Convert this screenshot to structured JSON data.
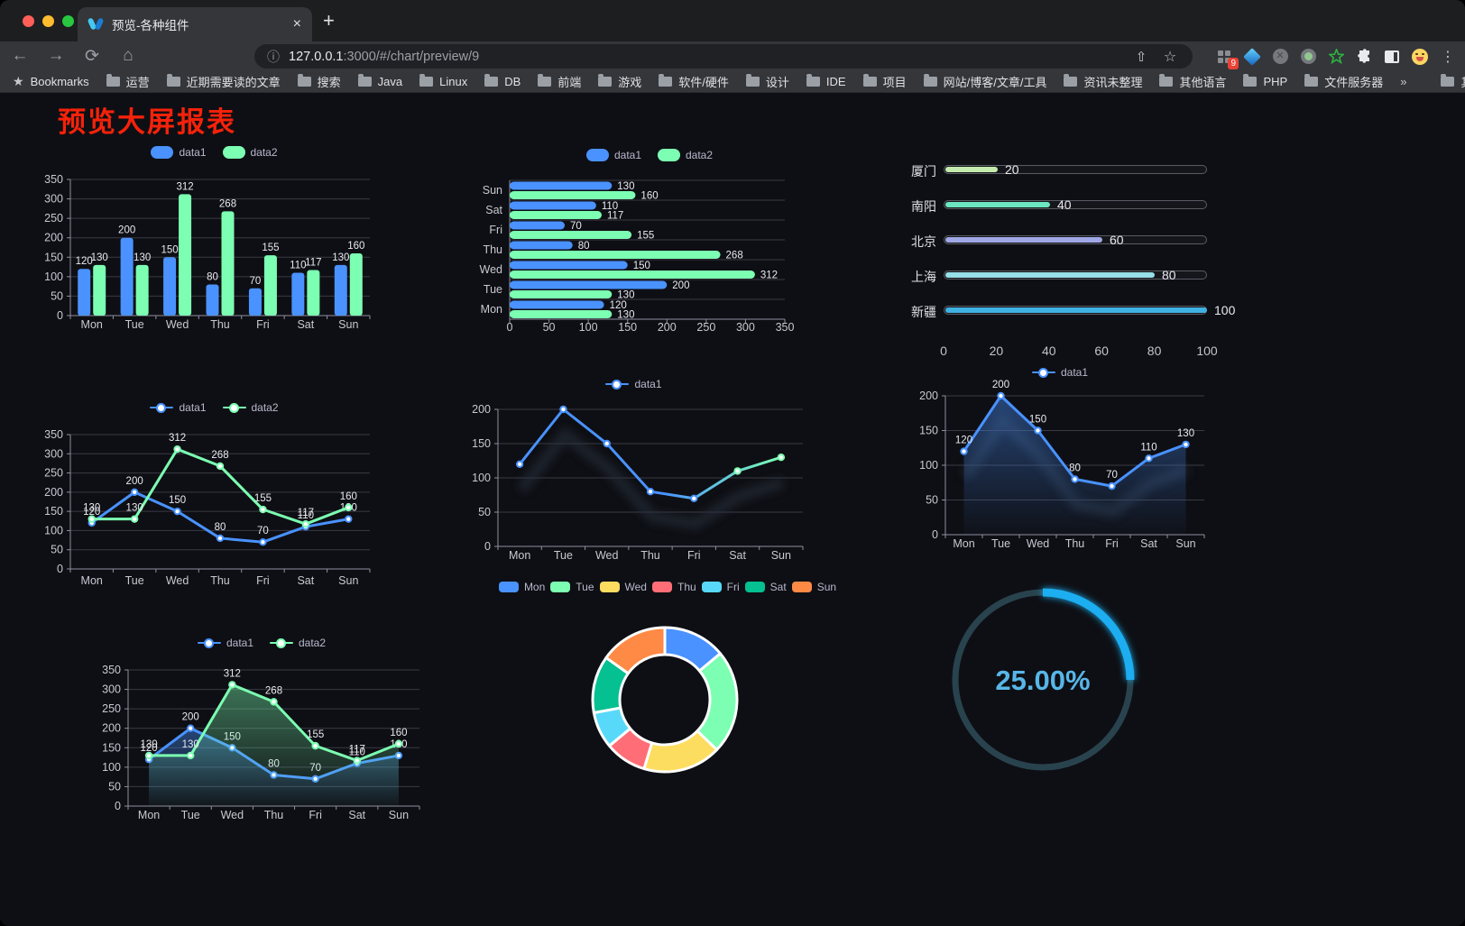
{
  "browser": {
    "traffic_lights": [
      "#ff5f57",
      "#febc2e",
      "#28c840"
    ],
    "tab": {
      "title": "预览-各种组件",
      "close": "×",
      "new_tab": "+"
    },
    "nav": {
      "back": "←",
      "forward": "→",
      "reload": "⟳",
      "home": "⌂",
      "info": "ⓘ"
    },
    "url": {
      "host": "127.0.0.1",
      "rest": ":3000/#/chart/preview/9"
    },
    "url_share": "⇧",
    "url_star": "☆",
    "menu_dots": "⋮",
    "extensions_badge": "9",
    "bookmarks": {
      "star_label": "Bookmarks",
      "items": [
        "运营",
        "近期需要读的文章",
        "搜索",
        "Java",
        "Linux",
        "DB",
        "前端",
        "游戏",
        "软件/硬件",
        "设计",
        "IDE",
        "项目",
        "网站/博客/文章/工具",
        "资讯未整理",
        "其他语言",
        "PHP",
        "文件服务器"
      ],
      "overflow": "»",
      "other": "其他书签"
    }
  },
  "page": {
    "title": "预览大屏报表",
    "title_color": "#f5220a",
    "background": "#0e0f14"
  },
  "chart_data": [
    {
      "id": "bar-vertical",
      "type": "bar",
      "categories": [
        "Mon",
        "Tue",
        "Wed",
        "Thu",
        "Fri",
        "Sat",
        "Sun"
      ],
      "series": [
        {
          "name": "data1",
          "color": "#4992ff",
          "values": [
            120,
            200,
            150,
            80,
            70,
            110,
            130
          ]
        },
        {
          "name": "data2",
          "color": "#7cffb2",
          "values": [
            130,
            130,
            312,
            268,
            155,
            117,
            160
          ]
        }
      ],
      "ylim": [
        0,
        350
      ],
      "yticks": [
        0,
        50,
        100,
        150,
        200,
        250,
        300,
        350
      ],
      "legend_position": "top",
      "show_labels": true,
      "grid": true
    },
    {
      "id": "bar-horizontal",
      "type": "hbar",
      "categories": [
        "Mon",
        "Tue",
        "Wed",
        "Thu",
        "Fri",
        "Sat",
        "Sun"
      ],
      "display_order": "Sun-top",
      "series": [
        {
          "name": "data1",
          "color": "#4992ff",
          "values": [
            120,
            200,
            150,
            80,
            70,
            110,
            130
          ]
        },
        {
          "name": "data2",
          "color": "#7cffb2",
          "values": [
            130,
            130,
            312,
            268,
            155,
            117,
            160
          ]
        }
      ],
      "xlim": [
        0,
        350
      ],
      "xticks": [
        0,
        50,
        100,
        150,
        200,
        250,
        300,
        350
      ],
      "legend_position": "top",
      "show_labels": true,
      "grid": true
    },
    {
      "id": "progress",
      "type": "progress_bars",
      "max": 100,
      "items": [
        {
          "label": "厦门",
          "value": 20,
          "color": "#c4ebad"
        },
        {
          "label": "南阳",
          "value": 40,
          "color": "#6be6c1"
        },
        {
          "label": "北京",
          "value": 60,
          "color": "#a0a7e6"
        },
        {
          "label": "上海",
          "value": 80,
          "color": "#96dee8"
        },
        {
          "label": "新疆",
          "value": 100,
          "color": "#3fb1e3"
        }
      ],
      "xticks": [
        0,
        20,
        40,
        60,
        80,
        100
      ]
    },
    {
      "id": "line-dual",
      "type": "line",
      "categories": [
        "Mon",
        "Tue",
        "Wed",
        "Thu",
        "Fri",
        "Sat",
        "Sun"
      ],
      "series": [
        {
          "name": "data1",
          "color": "#4992ff",
          "values": [
            120,
            200,
            150,
            80,
            70,
            110,
            130
          ]
        },
        {
          "name": "data2",
          "color": "#7cffb2",
          "values": [
            130,
            130,
            312,
            268,
            155,
            117,
            160
          ]
        }
      ],
      "ylim": [
        0,
        350
      ],
      "yticks": [
        0,
        50,
        100,
        150,
        200,
        250,
        300,
        350
      ],
      "legend_position": "top",
      "show_labels": true,
      "markers": true,
      "grid": true
    },
    {
      "id": "line-gradient",
      "type": "line",
      "categories": [
        "Mon",
        "Tue",
        "Wed",
        "Thu",
        "Fri",
        "Sat",
        "Sun"
      ],
      "series": [
        {
          "name": "data1",
          "color": "#4992ff",
          "gradient": [
            "#4992ff",
            "#7cffb2"
          ],
          "values": [
            120,
            200,
            150,
            80,
            70,
            110,
            130
          ]
        }
      ],
      "ylim": [
        0,
        200
      ],
      "yticks": [
        0,
        50,
        100,
        150,
        200
      ],
      "legend_position": "top",
      "show_labels": false,
      "markers": true,
      "shadow": true,
      "grid": true
    },
    {
      "id": "area-single",
      "type": "line",
      "categories": [
        "Mon",
        "Tue",
        "Wed",
        "Thu",
        "Fri",
        "Sat",
        "Sun"
      ],
      "series": [
        {
          "name": "data1",
          "color": "#4992ff",
          "area": true,
          "values": [
            120,
            200,
            150,
            80,
            70,
            110,
            130
          ]
        }
      ],
      "ylim": [
        0,
        200
      ],
      "yticks": [
        0,
        50,
        100,
        150,
        200
      ],
      "legend_position": "top",
      "show_labels": true,
      "markers": true,
      "shadow": true,
      "grid": true
    },
    {
      "id": "area-dual",
      "type": "line",
      "categories": [
        "Mon",
        "Tue",
        "Wed",
        "Thu",
        "Fri",
        "Sat",
        "Sun"
      ],
      "series": [
        {
          "name": "data1",
          "color": "#4992ff",
          "area": true,
          "values": [
            120,
            200,
            150,
            80,
            70,
            110,
            130
          ]
        },
        {
          "name": "data2",
          "color": "#7cffb2",
          "area": true,
          "values": [
            130,
            130,
            312,
            268,
            155,
            117,
            160
          ]
        }
      ],
      "ylim": [
        0,
        350
      ],
      "yticks": [
        0,
        50,
        100,
        150,
        200,
        250,
        300,
        350
      ],
      "legend_position": "top",
      "show_labels": true,
      "markers": true,
      "grid": true
    },
    {
      "id": "donut",
      "type": "pie",
      "labels": [
        "Mon",
        "Tue",
        "Wed",
        "Thu",
        "Fri",
        "Sat",
        "Sun"
      ],
      "values": [
        120,
        200,
        150,
        80,
        70,
        110,
        130
      ],
      "colors": [
        "#4992ff",
        "#7cffb2",
        "#fddd60",
        "#ff6e76",
        "#58d9f9",
        "#05c091",
        "#ff8a45"
      ],
      "inner_radius_ratio": 0.62,
      "border_color": "#ffffff",
      "legend_position": "top"
    },
    {
      "id": "gauge",
      "type": "gauge",
      "value": 25,
      "max": 100,
      "text": "25.00%",
      "color": "#1daef0",
      "track_color": "#29434e",
      "text_color": "#57b6e8",
      "start": "top",
      "direction": "clockwise"
    }
  ]
}
